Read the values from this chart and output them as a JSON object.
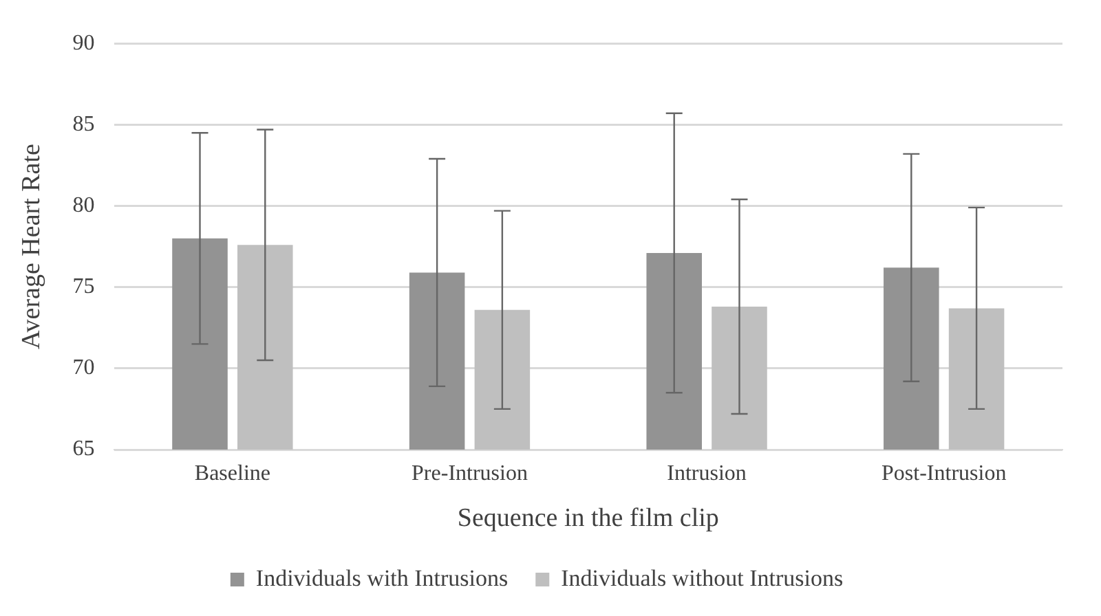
{
  "chart_data": {
    "type": "bar",
    "xlabel": "Sequence in the film clip",
    "ylabel": "Average Heart Rate",
    "categories": [
      "Baseline",
      "Pre-Intrusion",
      "Intrusion",
      "Post-Intrusion"
    ],
    "series": [
      {
        "name": "Individuals with Intrusions",
        "color": "#939393",
        "values": [
          78.0,
          75.9,
          77.1,
          76.2
        ],
        "errors": [
          6.5,
          7.0,
          8.6,
          7.0
        ]
      },
      {
        "name": "Individuals without Intrusions",
        "color": "#bfbfbf",
        "values": [
          77.6,
          73.6,
          73.8,
          73.7
        ],
        "errors": [
          7.1,
          6.1,
          6.6,
          6.2
        ]
      }
    ],
    "ylim": [
      65,
      90
    ],
    "yticks": [
      65,
      70,
      75,
      80,
      85,
      90
    ],
    "grid": "y",
    "legend": "bottom"
  }
}
